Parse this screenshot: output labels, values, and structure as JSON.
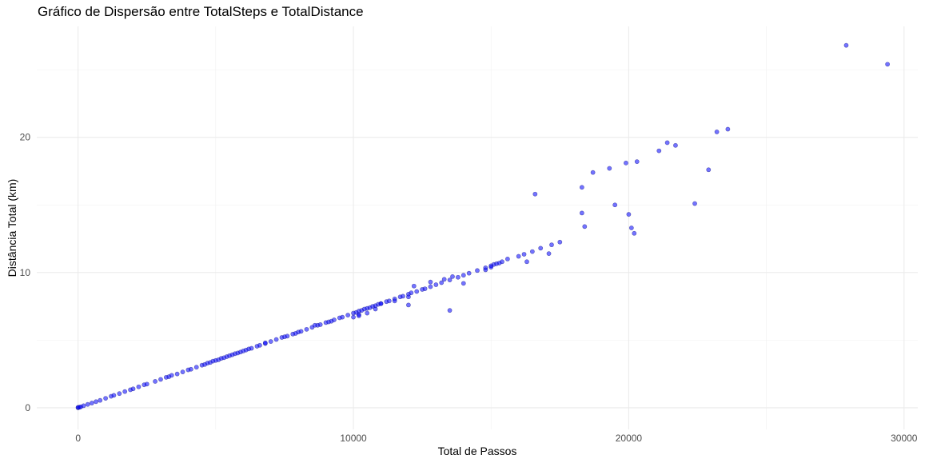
{
  "chart_data": {
    "type": "scatter",
    "title": "Gráfico de Dispersão entre TotalSteps e TotalDistance",
    "xlabel": "Total de Passos",
    "ylabel": "Distância Total (km)",
    "xlim": [
      -1500,
      30500
    ],
    "ylim": [
      -1.6,
      28.2
    ],
    "x_ticks": [
      0,
      10000,
      20000,
      30000
    ],
    "x_tick_labels": [
      "0",
      "10000",
      "20000",
      "30000"
    ],
    "y_ticks": [
      0,
      10,
      20
    ],
    "y_tick_labels": [
      "0",
      "10",
      "20"
    ],
    "grid": true,
    "point_color": "#0000ff",
    "point_opacity": 0.55,
    "series": [
      {
        "x": [
          0,
          0,
          50,
          100,
          200,
          350,
          500,
          650,
          800,
          1000,
          1200,
          1300,
          1500,
          1700,
          1900,
          2000,
          2200,
          2400,
          2500,
          2800,
          3000,
          3200,
          3300,
          3400,
          3600,
          3800,
          4000,
          4100,
          4300,
          4500,
          4600,
          4700,
          4800,
          4900,
          5000,
          5100,
          5200,
          5300,
          5400,
          5500,
          5600,
          5700,
          5800,
          5900,
          6000,
          6100,
          6200,
          6300,
          6500,
          6600,
          6800,
          7000,
          7200,
          7400,
          7500,
          7600,
          7800,
          8000,
          8100,
          8300,
          8500,
          8700,
          8800,
          9000,
          9100,
          9300,
          9500,
          9600,
          9800,
          10000,
          10000,
          10100,
          10200,
          10200,
          10300,
          10400,
          10500,
          10600,
          10700,
          10800,
          10900,
          11000,
          11200,
          11300,
          11500,
          11700,
          11800,
          12000,
          12000,
          12100,
          12300,
          12500,
          12600,
          12800,
          13000,
          13200,
          13500,
          13800,
          14000,
          14200,
          14500,
          14800,
          15000,
          15100,
          15200,
          15400,
          15600,
          16000,
          16200,
          16500,
          16800,
          17200,
          17500,
          12200,
          12800,
          13300,
          13600,
          14800,
          15000,
          15300,
          14000,
          11000,
          10500,
          10200,
          10800,
          11500,
          12000,
          9200,
          8600,
          7900,
          6800,
          13500,
          16300,
          16600,
          17100,
          18300,
          18400,
          18300,
          18700,
          19300,
          19500,
          19900,
          20000,
          20100,
          20300,
          20200,
          21100,
          21400,
          21700,
          22400,
          22900,
          23200,
          23600,
          27900,
          29400
        ],
        "y": [
          0,
          0.03,
          0.04,
          0.07,
          0.15,
          0.25,
          0.35,
          0.45,
          0.55,
          0.7,
          0.85,
          0.92,
          1.05,
          1.2,
          1.33,
          1.4,
          1.55,
          1.7,
          1.75,
          1.95,
          2.1,
          2.25,
          2.3,
          2.4,
          2.5,
          2.65,
          2.8,
          2.85,
          3.0,
          3.15,
          3.2,
          3.3,
          3.35,
          3.45,
          3.5,
          3.55,
          3.65,
          3.7,
          3.78,
          3.85,
          3.92,
          4.0,
          4.05,
          4.12,
          4.2,
          4.27,
          4.35,
          4.4,
          4.55,
          4.62,
          4.75,
          4.9,
          5.05,
          5.2,
          5.25,
          5.3,
          5.45,
          5.6,
          5.65,
          5.8,
          5.95,
          6.1,
          6.15,
          6.3,
          6.35,
          6.5,
          6.65,
          6.7,
          6.85,
          7.0,
          6.7,
          7.05,
          7.15,
          6.9,
          7.2,
          7.3,
          7.35,
          7.4,
          7.5,
          7.55,
          7.65,
          7.7,
          7.85,
          7.9,
          8.05,
          8.2,
          8.25,
          8.4,
          7.6,
          8.5,
          8.6,
          8.75,
          8.8,
          8.95,
          9.1,
          9.25,
          9.45,
          9.65,
          9.8,
          9.95,
          10.15,
          10.35,
          10.5,
          10.6,
          10.65,
          10.8,
          11.0,
          11.2,
          11.35,
          11.55,
          11.8,
          12.05,
          12.25,
          9.0,
          9.3,
          9.5,
          9.7,
          10.2,
          10.4,
          10.7,
          9.2,
          7.7,
          7.0,
          6.8,
          7.3,
          7.9,
          8.2,
          6.4,
          6.1,
          5.5,
          4.8,
          7.2,
          10.8,
          15.8,
          11.4,
          14.4,
          13.4,
          16.3,
          17.4,
          17.7,
          15.0,
          18.1,
          14.3,
          13.3,
          18.2,
          12.9,
          19.0,
          19.6,
          19.4,
          15.1,
          17.6,
          20.4,
          20.6,
          26.8,
          25.4
        ]
      }
    ]
  }
}
